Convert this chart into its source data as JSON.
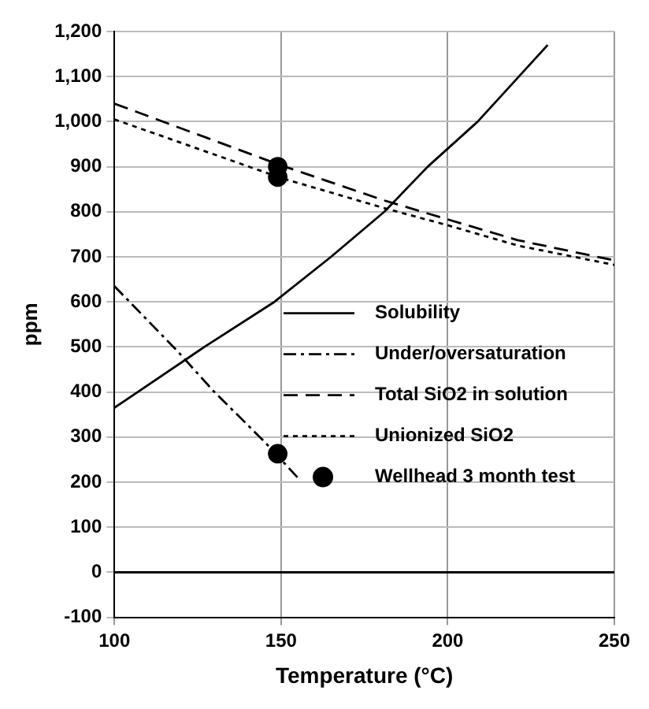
{
  "chart_data": {
    "type": "line",
    "xlabel": "Temperature (°C)",
    "ylabel": "ppm",
    "xlim": [
      100,
      250
    ],
    "xticks": [
      100,
      150,
      200,
      250
    ],
    "ylim": [
      -100,
      1200
    ],
    "yticks": [
      -100,
      0,
      100,
      200,
      300,
      400,
      500,
      600,
      700,
      800,
      900,
      {
        "value": 1000,
        "label": "1,000"
      },
      {
        "value": 1100,
        "label": "1,100"
      },
      {
        "value": 1200,
        "label": "1,200"
      }
    ],
    "grid": true,
    "legend": "bottom right",
    "ref_lines": [
      {
        "axis": "y",
        "value": 0,
        "color": "#000000",
        "line_style": "solid"
      }
    ],
    "series": [
      {
        "name": "Solubility",
        "color": "#000000",
        "line_style": "solid",
        "marker": "none",
        "x": [
          100,
          107,
          127,
          148,
          165,
          181,
          194,
          209,
          230
        ],
        "values": [
          365,
          400,
          500,
          600,
          700,
          800,
          900,
          1000,
          1170
        ]
      },
      {
        "name": "Under/oversaturation",
        "color": "#000000",
        "line_style": "dashdot",
        "marker": "none",
        "x": [
          100,
          119,
          130,
          145,
          155
        ],
        "values": [
          635,
          490,
          400,
          290,
          210
        ]
      },
      {
        "name": "Total SiO2 in solution",
        "color": "#000000",
        "line_style": "dashed",
        "marker": "none",
        "x": [
          100,
          150,
          181,
          200,
          221,
          250
        ],
        "values": [
          1040,
          903,
          825,
          783,
          737,
          692
        ]
      },
      {
        "name": "Unionized SiO2",
        "color": "#000000",
        "line_style": "dotted",
        "marker": "none",
        "x": [
          100,
          150,
          181,
          200,
          221,
          250
        ],
        "values": [
          1005,
          875,
          808,
          770,
          725,
          682
        ]
      },
      {
        "name": "Wellhead 3 month test",
        "type": "scatter",
        "color": "#000000",
        "marker": "circle",
        "x": [
          149,
          149,
          149
        ],
        "values": [
          900,
          877,
          263
        ]
      }
    ]
  }
}
